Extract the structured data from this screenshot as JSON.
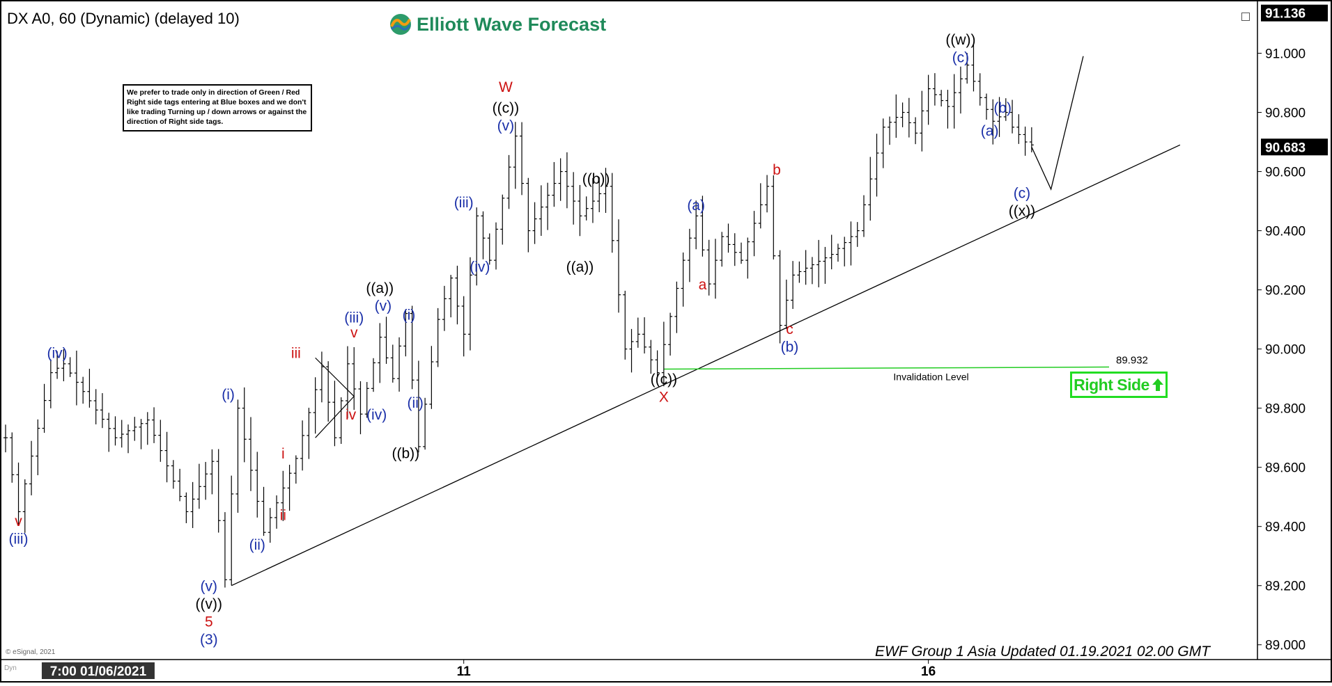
{
  "header": {
    "symbol_title": "DX A0, 60 (Dynamic) (delayed 10)",
    "brand": "Elliott Wave Forecast",
    "note": "We prefer to trade only in direction of Green / Red Right side tags entering at Blue boxes and we don't like trading Turning up / down arrows or against the direction of Right side tags."
  },
  "footer": {
    "updated": "EWF Group 1 Asia  Updated 01.19.2021 02.00 GMT",
    "copyright": "© eSignal, 2021",
    "dyn": "Dyn"
  },
  "right_side_tag": "Right Side",
  "colors": {
    "blue": "#1a2fa8",
    "red": "#cc1111",
    "green": "#22cc22",
    "black": "#000000"
  },
  "chart_data": {
    "type": "bar",
    "subtype": "ohlc-price-chart",
    "price_axis": {
      "ylim": [
        88.95,
        91.18
      ],
      "ticks": [
        "91.000",
        "90.800",
        "90.600",
        "90.400",
        "90.200",
        "90.000",
        "89.800",
        "89.600",
        "89.400",
        "89.200",
        "89.000"
      ],
      "current_price_label": "91.136",
      "last_price_label": "90.683",
      "last_price": 90.683,
      "top_price": 91.136
    },
    "time_axis": {
      "labels": [
        "7:00 01/06/2021",
        "11",
        "16"
      ],
      "range_bars": [
        0,
        190
      ],
      "label_bars": [
        15,
        71,
        143
      ]
    },
    "pivots": [
      [
        0,
        89.7
      ],
      [
        2,
        89.45
      ],
      [
        7,
        89.92
      ],
      [
        9,
        89.95
      ],
      [
        17,
        89.7
      ],
      [
        22,
        89.76
      ],
      [
        28,
        89.45
      ],
      [
        32,
        89.62
      ],
      [
        34,
        89.22
      ],
      [
        36,
        89.8
      ],
      [
        40,
        89.38
      ],
      [
        45,
        89.63
      ],
      [
        49,
        89.94
      ],
      [
        51,
        89.7
      ],
      [
        53,
        89.95
      ],
      [
        55,
        89.78
      ],
      [
        58,
        90.04
      ],
      [
        60,
        89.9
      ],
      [
        62,
        90.12
      ],
      [
        64,
        89.67
      ],
      [
        67,
        90.1
      ],
      [
        69,
        90.24
      ],
      [
        71,
        90.05
      ],
      [
        73,
        90.45
      ],
      [
        75,
        90.3
      ],
      [
        79,
        90.72
      ],
      [
        81,
        90.4
      ],
      [
        86,
        90.6
      ],
      [
        89,
        90.45
      ],
      [
        93,
        90.55
      ],
      [
        96,
        90.0
      ],
      [
        98,
        90.05
      ],
      [
        101,
        89.92
      ],
      [
        105,
        90.3
      ],
      [
        107,
        90.45
      ],
      [
        109,
        90.22
      ],
      [
        111,
        90.38
      ],
      [
        114,
        90.3
      ],
      [
        118,
        90.55
      ],
      [
        120,
        90.08
      ],
      [
        122,
        90.25
      ],
      [
        128,
        90.32
      ],
      [
        132,
        90.4
      ],
      [
        136,
        90.75
      ],
      [
        139,
        90.8
      ],
      [
        141,
        90.73
      ],
      [
        143,
        90.88
      ],
      [
        146,
        90.82
      ],
      [
        149,
        90.96
      ],
      [
        151,
        90.85
      ],
      [
        153,
        90.77
      ],
      [
        155,
        90.8
      ],
      [
        156,
        90.75
      ],
      [
        158,
        90.7
      ],
      [
        159,
        90.69
      ]
    ],
    "projection": [
      [
        159,
        90.683
      ],
      [
        162,
        90.54
      ],
      [
        167,
        90.99
      ]
    ],
    "trendline": [
      [
        35,
        89.2
      ],
      [
        182,
        90.69
      ]
    ],
    "invalidation": {
      "value": 89.932,
      "value_label": "89.932",
      "label": "Invalidation Level",
      "from_bar": 102,
      "to_bar": 171
    },
    "triangle": [
      [
        48,
        89.97
      ],
      [
        54,
        89.84
      ],
      [
        48,
        89.7
      ]
    ],
    "labels": [
      {
        "text": "v",
        "bar": 2,
        "price": 89.42,
        "color": "red",
        "pos": "below"
      },
      {
        "text": "(iii)",
        "bar": 2,
        "price": 89.36,
        "color": "blue",
        "pos": "below"
      },
      {
        "text": "(iv)",
        "bar": 8,
        "price": 89.96,
        "color": "blue",
        "pos": "above"
      },
      {
        "text": "(i)",
        "bar": 34.5,
        "price": 89.82,
        "color": "blue",
        "pos": "above"
      },
      {
        "text": "(ii)",
        "bar": 39,
        "price": 89.34,
        "color": "blue",
        "pos": "below"
      },
      {
        "text": "(v)",
        "bar": 31.5,
        "price": 89.2,
        "color": "blue",
        "pos": "below"
      },
      {
        "text": "((v))",
        "bar": 31.5,
        "price": 89.14,
        "color": "black",
        "pos": "below"
      },
      {
        "text": "5",
        "bar": 31.5,
        "price": 89.08,
        "color": "red",
        "pos": "below"
      },
      {
        "text": "(3)",
        "bar": 31.5,
        "price": 89.02,
        "color": "blue",
        "pos": "below"
      },
      {
        "text": "i",
        "bar": 43,
        "price": 89.62,
        "color": "red",
        "pos": "above"
      },
      {
        "text": "ii",
        "bar": 43,
        "price": 89.44,
        "color": "red",
        "pos": "below"
      },
      {
        "text": "iii",
        "bar": 45,
        "price": 89.96,
        "color": "red",
        "pos": "above"
      },
      {
        "text": "iv",
        "bar": 53.5,
        "price": 89.78,
        "color": "red",
        "pos": "below"
      },
      {
        "text": "v",
        "bar": 54,
        "price": 90.03,
        "color": "red",
        "pos": "above"
      },
      {
        "text": "(iii)",
        "bar": 54,
        "price": 90.08,
        "color": "blue",
        "pos": "above"
      },
      {
        "text": "(iv)",
        "bar": 57.5,
        "price": 89.78,
        "color": "blue",
        "pos": "below"
      },
      {
        "text": "(v)",
        "bar": 58.5,
        "price": 90.12,
        "color": "blue",
        "pos": "above"
      },
      {
        "text": "((a))",
        "bar": 58,
        "price": 90.18,
        "color": "black",
        "pos": "above"
      },
      {
        "text": "((b))",
        "bar": 62,
        "price": 89.65,
        "color": "black",
        "pos": "below"
      },
      {
        "text": "(i)",
        "bar": 62.5,
        "price": 90.09,
        "color": "blue",
        "pos": "above"
      },
      {
        "text": "(ii)",
        "bar": 63.5,
        "price": 89.82,
        "color": "blue",
        "pos": "below"
      },
      {
        "text": "(iii)",
        "bar": 71,
        "price": 90.47,
        "color": "blue",
        "pos": "above"
      },
      {
        "text": "(iv)",
        "bar": 73.5,
        "price": 90.28,
        "color": "blue",
        "pos": "below"
      },
      {
        "text": "(v)",
        "bar": 77.5,
        "price": 90.73,
        "color": "blue",
        "pos": "above"
      },
      {
        "text": "((c))",
        "bar": 77.5,
        "price": 90.79,
        "color": "black",
        "pos": "above"
      },
      {
        "text": "W",
        "bar": 77.5,
        "price": 90.86,
        "color": "red",
        "pos": "above"
      },
      {
        "text": "((a))",
        "bar": 89,
        "price": 90.28,
        "color": "black",
        "pos": "below"
      },
      {
        "text": "((b))",
        "bar": 91.5,
        "price": 90.55,
        "color": "black",
        "pos": "above"
      },
      {
        "text": "((c))",
        "bar": 102,
        "price": 89.9,
        "color": "black",
        "pos": "below"
      },
      {
        "text": "X",
        "bar": 102,
        "price": 89.84,
        "color": "red",
        "pos": "below"
      },
      {
        "text": "(a)",
        "bar": 107,
        "price": 90.46,
        "color": "blue",
        "pos": "above"
      },
      {
        "text": "a",
        "bar": 108,
        "price": 90.22,
        "color": "red",
        "pos": "below"
      },
      {
        "text": "b",
        "bar": 119.5,
        "price": 90.58,
        "color": "red",
        "pos": "above"
      },
      {
        "text": "c",
        "bar": 121.5,
        "price": 90.07,
        "color": "red",
        "pos": "below"
      },
      {
        "text": "(b)",
        "bar": 121.5,
        "price": 90.01,
        "color": "blue",
        "pos": "below"
      },
      {
        "text": "(c)",
        "bar": 148,
        "price": 90.96,
        "color": "blue",
        "pos": "above"
      },
      {
        "text": "((w))",
        "bar": 148,
        "price": 91.02,
        "color": "black",
        "pos": "above"
      },
      {
        "text": "(b)",
        "bar": 154.5,
        "price": 90.79,
        "color": "blue",
        "pos": "above"
      },
      {
        "text": "(a)",
        "bar": 152.5,
        "price": 90.74,
        "color": "blue",
        "pos": "below"
      },
      {
        "text": "(c)",
        "bar": 157.5,
        "price": 90.53,
        "color": "blue",
        "pos": "below"
      },
      {
        "text": "((x))",
        "bar": 157.5,
        "price": 90.47,
        "color": "black",
        "pos": "below"
      }
    ]
  }
}
